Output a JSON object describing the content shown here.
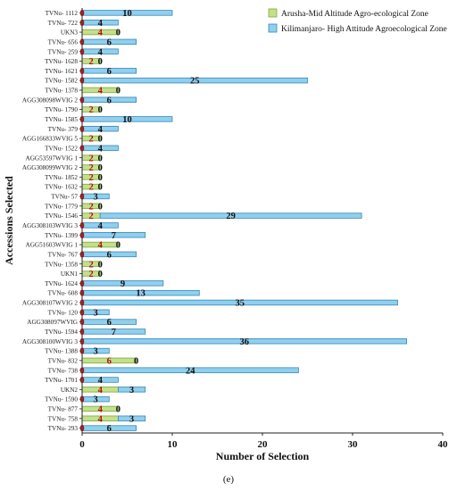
{
  "chart_data": {
    "type": "bar",
    "orientation": "horizontal",
    "stacked": true,
    "title": "",
    "xlabel": "Number of Selection",
    "ylabel": "Accessions Selected",
    "panel_label": "(e)",
    "xlim": [
      0,
      40
    ],
    "xticks": [
      0,
      10,
      20,
      30,
      40
    ],
    "legend_position": "top-right",
    "categories": [
      "TVNu- 1112",
      "TVNu- 722",
      "UKN3",
      "TVNu- 656",
      "TVNu- 259",
      "TVNu- 1628",
      "TVNu- 1621",
      "TVNu- 1582",
      "TVNu- 1378",
      "AGG308098WVIG 2",
      "TVNu- 1790",
      "TVNu- 1585",
      "TVNu- 379",
      "AGG166833WVIG 5",
      "TVNu- 1522",
      "AGG53597WVIG 1",
      "AGG308099WVIG 2",
      "TVNu- 1852",
      "TVNu- 1632",
      "TVNu- 57",
      "TVNu- 1779",
      "TVNu- 1546",
      "AGG308103WVIG 3",
      "TVNu- 1399",
      "AGG51603WVIG 1",
      "TVNu- 767",
      "TVNu- 1358",
      "UKN1",
      "TVNu- 1624",
      "TVNu- 608",
      "AGG308107WVIG 2",
      "TVNu- 120",
      "AGG308097WVIG",
      "TVNu- 1594",
      "AGG308100WVIG 3",
      "TVNu- 1388",
      "TVNu- 832",
      "TVNu- 738",
      "TVNu- 1701",
      "UKN2",
      "TVNu- 1590",
      "TVNu- 877",
      "TVNu- 758",
      "TVNu- 293"
    ],
    "series": [
      {
        "name": "Arusha-Mid Altitude Agro-ecological Zone",
        "color": "#c4e08a",
        "values": [
          0,
          0,
          4,
          0,
          0,
          2,
          0,
          0,
          4,
          0,
          2,
          0,
          0,
          2,
          0,
          2,
          2,
          2,
          2,
          0,
          2,
          2,
          0,
          0,
          4,
          0,
          2,
          2,
          0,
          0,
          0,
          0,
          0,
          0,
          0,
          0,
          6,
          0,
          0,
          4,
          0,
          4,
          4,
          0
        ]
      },
      {
        "name": "Kilimanjaro- High Attitude Agroecological Zone",
        "color": "#8fd0ee",
        "values": [
          10,
          4,
          0,
          6,
          4,
          0,
          6,
          25,
          0,
          6,
          0,
          10,
          4,
          0,
          4,
          0,
          0,
          0,
          0,
          3,
          0,
          29,
          4,
          7,
          0,
          6,
          0,
          0,
          9,
          13,
          35,
          3,
          6,
          7,
          36,
          3,
          0,
          24,
          4,
          3,
          3,
          0,
          3,
          6
        ]
      }
    ]
  }
}
